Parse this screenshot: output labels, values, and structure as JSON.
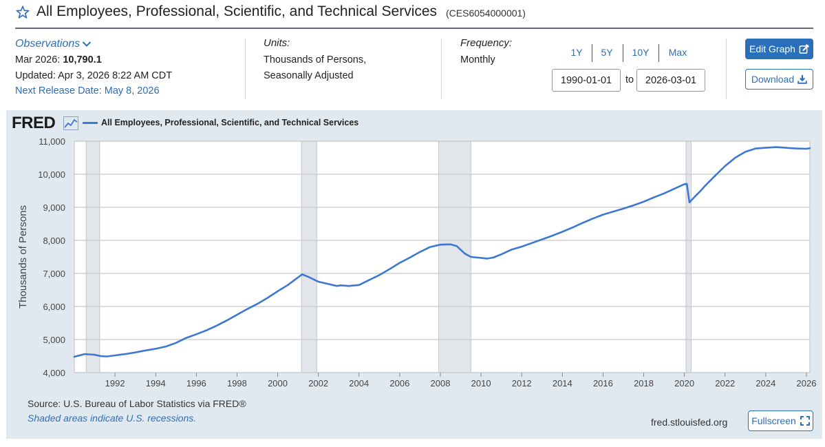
{
  "header": {
    "title": "All Employees, Professional, Scientific, and Technical Services",
    "series_id": "(CES6054000001)"
  },
  "observations": {
    "label": "Observations",
    "date": "Mar 2026:",
    "value": "10,790.1",
    "updated": "Updated: Apr 3, 2026 8:22 AM CDT",
    "next_release": "Next Release Date: May 8, 2026"
  },
  "units": {
    "label": "Units:",
    "line1": "Thousands of Persons,",
    "line2": "Seasonally Adjusted"
  },
  "frequency": {
    "label": "Frequency:",
    "value": "Monthly"
  },
  "range": {
    "buttons": [
      "1Y",
      "5Y",
      "10Y",
      "Max"
    ],
    "start": "1990-01-01",
    "to_label": "to",
    "end": "2026-03-01"
  },
  "actions": {
    "edit_graph": "Edit Graph",
    "download": "Download",
    "fullscreen": "Fullscreen"
  },
  "footer": {
    "source": "Source: U.S. Bureau of Labor Statistics via FRED®",
    "recession_note": "Shaded areas indicate U.S. recessions.",
    "url": "fred.stlouisfed.org"
  },
  "logo": {
    "text": "FRED"
  },
  "colors": {
    "accent": "#2a6fba",
    "series": "#3b77d3",
    "panel": "#e1e9f0",
    "recession": "#e2e6ea"
  },
  "chart_data": {
    "type": "line",
    "title": "",
    "legend": [
      "All Employees, Professional, Scientific, and Technical Services"
    ],
    "xlabel": "",
    "ylabel": "Thousands of Persons",
    "xlim": [
      1990.0,
      2026.17
    ],
    "ylim": [
      4000,
      11000
    ],
    "yticks": [
      4000,
      5000,
      6000,
      7000,
      8000,
      9000,
      10000,
      11000
    ],
    "ytick_labels": [
      "4,000",
      "5,000",
      "6,000",
      "7,000",
      "8,000",
      "9,000",
      "10,000",
      "11,000"
    ],
    "xticks": [
      1992,
      1994,
      1996,
      1998,
      2000,
      2002,
      2004,
      2006,
      2008,
      2010,
      2012,
      2014,
      2016,
      2018,
      2020,
      2022,
      2024,
      2026
    ],
    "xtick_labels": [
      "1992",
      "1994",
      "1996",
      "1998",
      "2000",
      "2002",
      "2004",
      "2006",
      "2008",
      "2010",
      "2012",
      "2014",
      "2016",
      "2018",
      "2020",
      "2022",
      "2024",
      "2026"
    ],
    "recessions": [
      [
        1990.58,
        1991.25
      ],
      [
        2001.17,
        2001.92
      ],
      [
        2007.92,
        2009.5
      ],
      [
        2020.08,
        2020.33
      ]
    ],
    "series": [
      {
        "name": "All Employees, Professional, Scientific, and Technical Services",
        "x": [
          1990.0,
          1990.5,
          1991.0,
          1991.3,
          1991.6,
          1992.0,
          1992.5,
          1993.0,
          1993.5,
          1994.0,
          1994.5,
          1995.0,
          1995.5,
          1996.0,
          1996.5,
          1997.0,
          1997.5,
          1998.0,
          1998.5,
          1999.0,
          1999.5,
          2000.0,
          2000.5,
          2001.0,
          2001.2,
          2001.5,
          2002.0,
          2002.5,
          2002.9,
          2003.1,
          2003.5,
          2004.0,
          2004.5,
          2005.0,
          2005.5,
          2006.0,
          2006.5,
          2007.0,
          2007.5,
          2008.0,
          2008.5,
          2008.8,
          2009.2,
          2009.5,
          2010.0,
          2010.3,
          2010.6,
          2011.0,
          2011.5,
          2012.0,
          2012.5,
          2013.0,
          2013.5,
          2014.0,
          2014.5,
          2015.0,
          2015.5,
          2016.0,
          2016.5,
          2017.0,
          2017.5,
          2018.0,
          2018.5,
          2019.0,
          2019.5,
          2020.0,
          2020.12,
          2020.25,
          2020.4,
          2020.6,
          2020.8,
          2021.0,
          2021.5,
          2022.0,
          2022.5,
          2023.0,
          2023.5,
          2024.0,
          2024.5,
          2025.0,
          2025.5,
          2026.0,
          2026.17
        ],
        "values": [
          4480,
          4560,
          4540,
          4500,
          4490,
          4520,
          4560,
          4610,
          4670,
          4720,
          4790,
          4900,
          5050,
          5160,
          5280,
          5420,
          5580,
          5750,
          5920,
          6080,
          6260,
          6460,
          6650,
          6880,
          6970,
          6900,
          6750,
          6680,
          6620,
          6640,
          6620,
          6650,
          6800,
          6950,
          7130,
          7320,
          7480,
          7650,
          7800,
          7870,
          7880,
          7830,
          7600,
          7500,
          7470,
          7450,
          7480,
          7580,
          7720,
          7810,
          7920,
          8030,
          8140,
          8260,
          8390,
          8530,
          8660,
          8780,
          8870,
          8960,
          9060,
          9170,
          9300,
          9420,
          9560,
          9700,
          9710,
          9150,
          9250,
          9380,
          9500,
          9640,
          9950,
          10250,
          10500,
          10680,
          10780,
          10800,
          10820,
          10800,
          10780,
          10770,
          10790
        ]
      }
    ]
  }
}
